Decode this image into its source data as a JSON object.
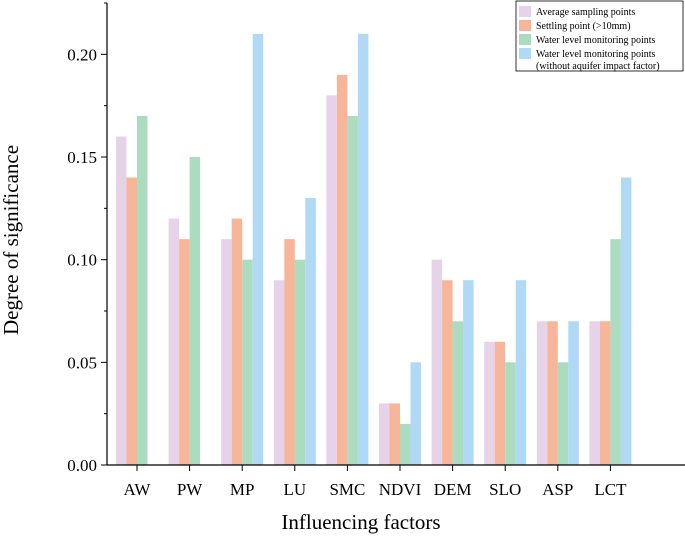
{
  "chart_data": {
    "type": "bar",
    "title": "",
    "xlabel": "Influencing factors",
    "ylabel": "Degree of significance",
    "ylim": [
      0,
      0.225
    ],
    "yticks": [
      "0.00",
      "0.05",
      "0.10",
      "0.15",
      "0.20"
    ],
    "categories": [
      "AW",
      "PW",
      "MP",
      "LU",
      "SMC",
      "NDVI",
      "DEM",
      "SLO",
      "ASP",
      "LCT"
    ],
    "series": [
      {
        "name": "Average sampling points",
        "color": "#e6d3e9",
        "values": [
          0.16,
          0.12,
          0.11,
          0.09,
          0.18,
          0.03,
          0.1,
          0.06,
          0.07,
          0.07
        ]
      },
      {
        "name": "Settling point (>10mm)",
        "color": "#f7b59a",
        "values": [
          0.14,
          0.11,
          0.12,
          0.11,
          0.19,
          0.03,
          0.09,
          0.06,
          0.07,
          0.07
        ]
      },
      {
        "name": "Water level monitoring points",
        "color": "#abdcc0",
        "values": [
          0.17,
          0.15,
          0.1,
          0.1,
          0.17,
          0.02,
          0.07,
          0.05,
          0.05,
          0.11
        ]
      },
      {
        "name": "Water level monitoring points",
        "name_line2": "(without aquifer impact factor)",
        "color": "#afd9f5",
        "values": [
          null,
          null,
          0.21,
          0.13,
          0.21,
          0.05,
          0.09,
          0.09,
          0.07,
          0.14
        ]
      }
    ],
    "legend_position": "top-right",
    "grid": false
  }
}
